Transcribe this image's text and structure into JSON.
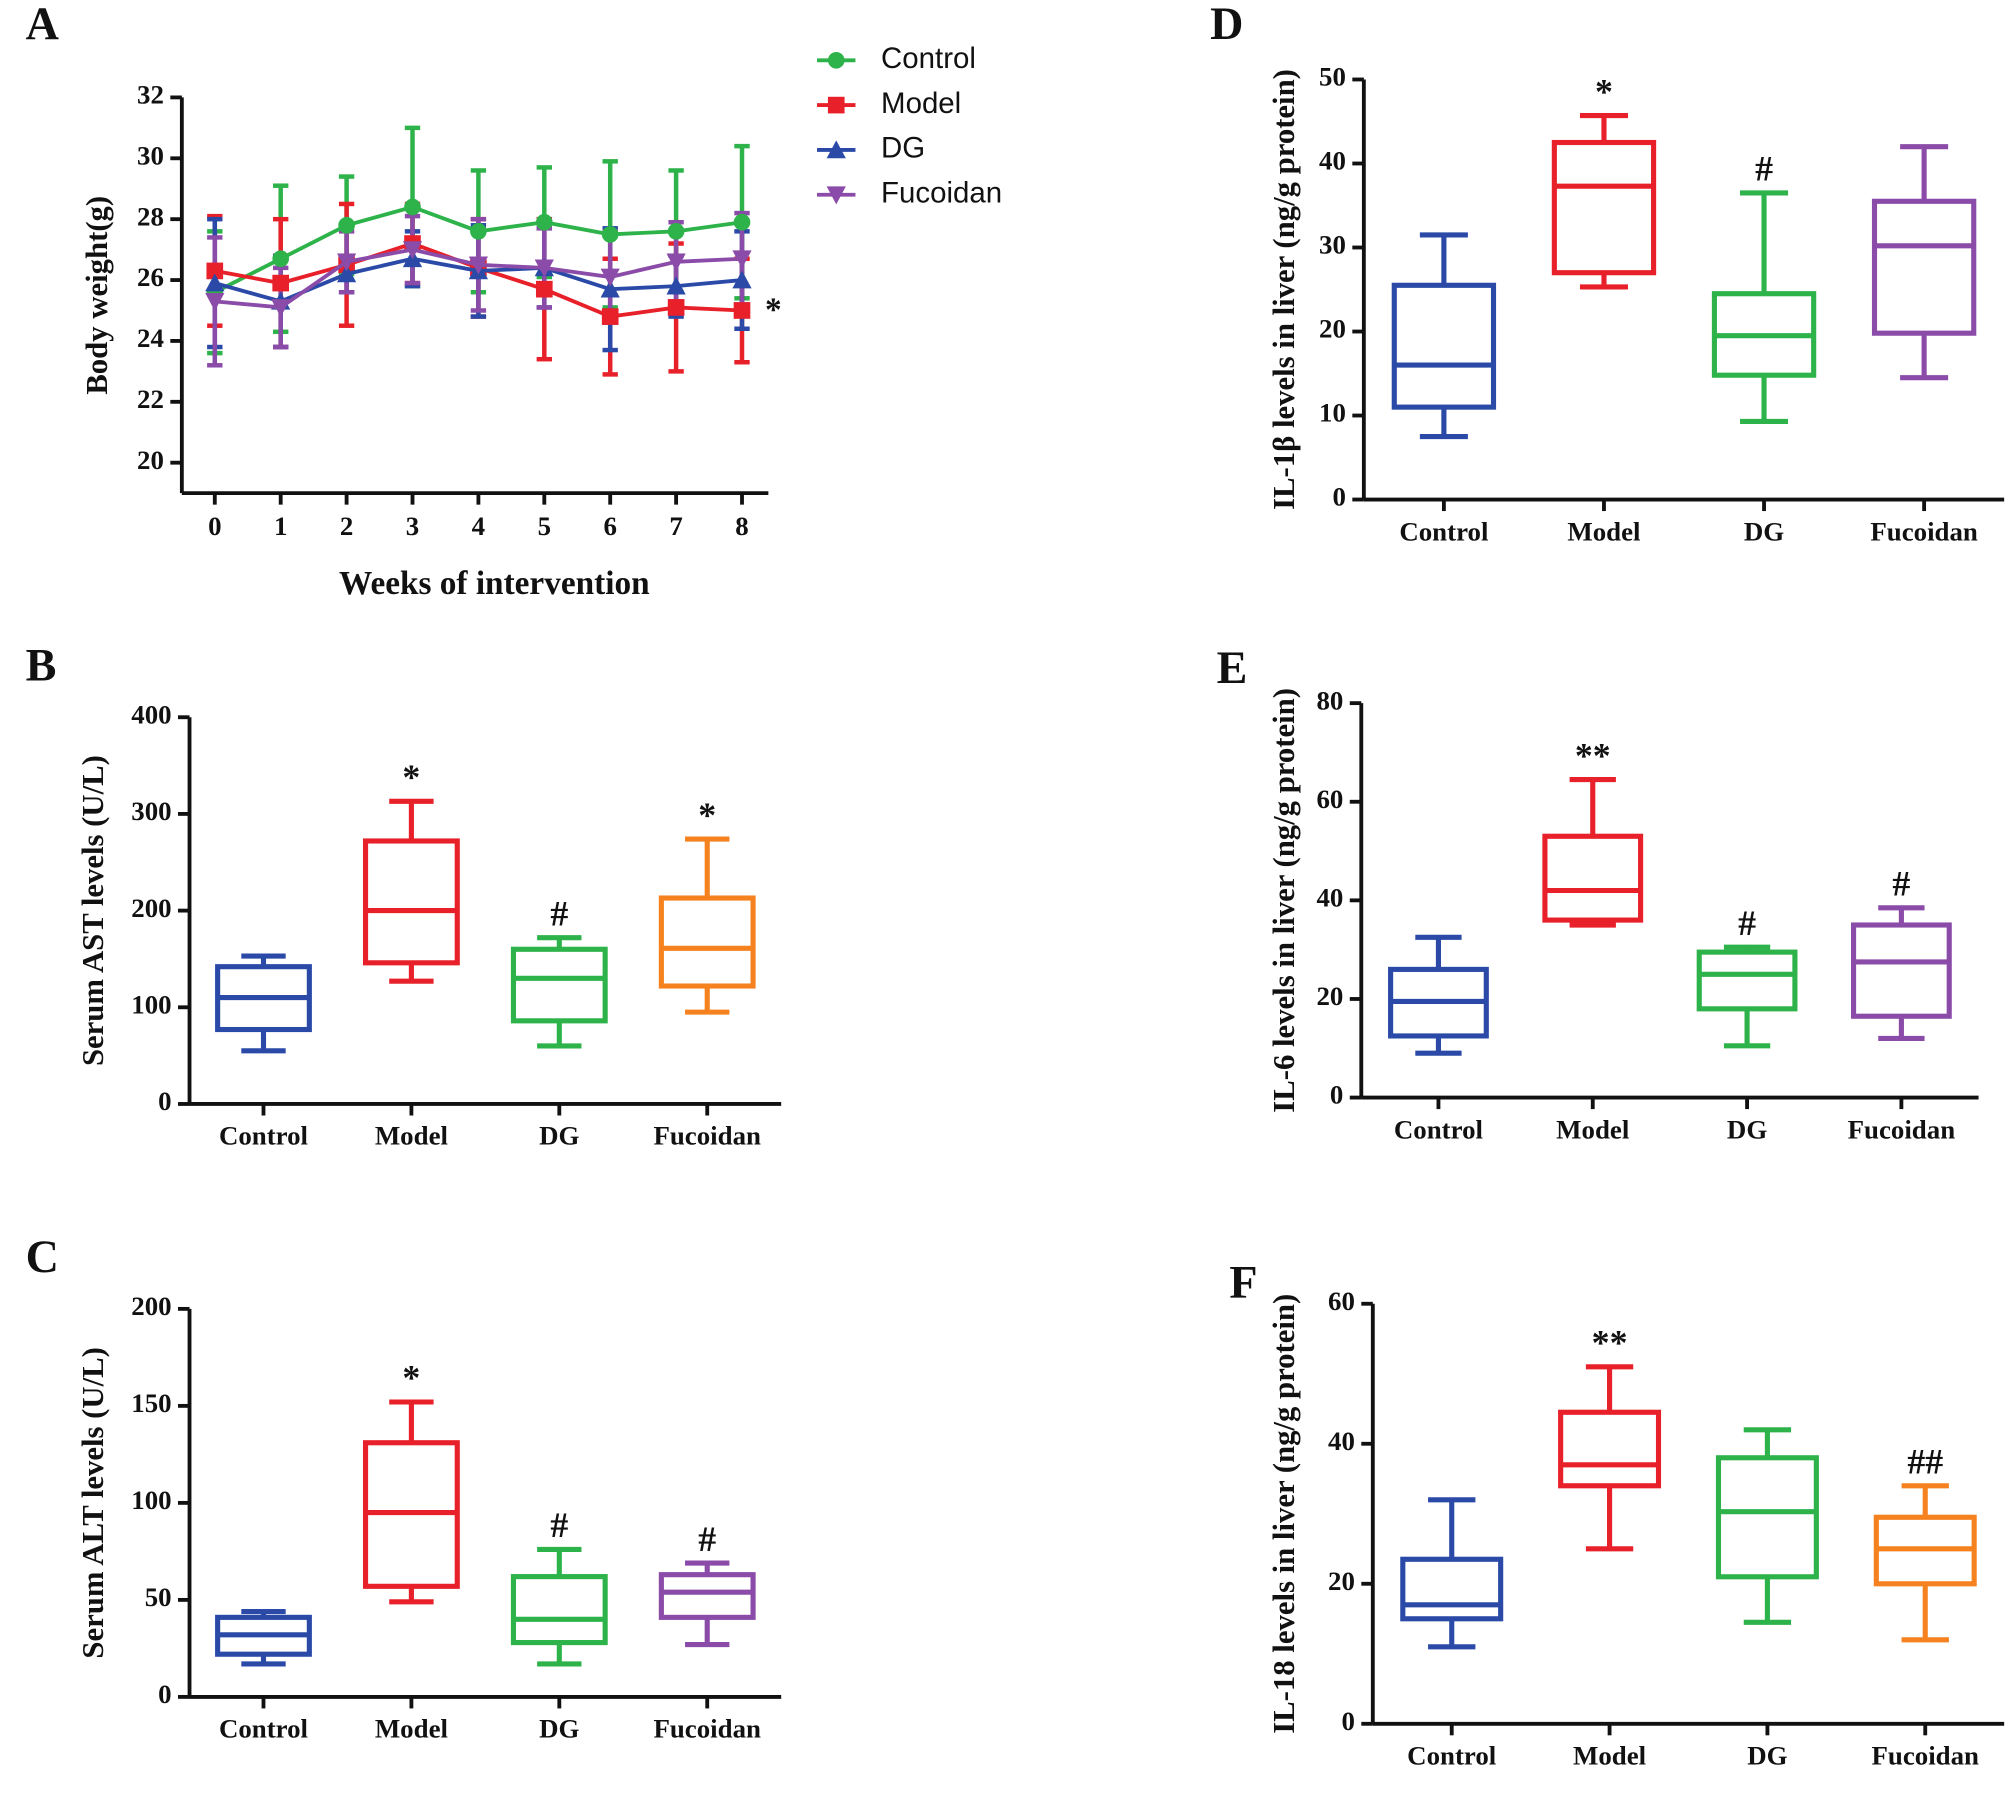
{
  "chart_data": [
    {
      "type": "line",
      "panel": "A",
      "y_label": "Body weight(g)",
      "x_label": "Weeks of intervention",
      "x": [
        0,
        1,
        2,
        3,
        4,
        5,
        6,
        7,
        8
      ],
      "xlim": [
        -0.5,
        8.4
      ],
      "xticks": [
        0,
        1,
        2,
        3,
        4,
        5,
        6,
        7,
        8
      ],
      "ylim": [
        19,
        32
      ],
      "yticks": [
        20,
        22,
        24,
        26,
        28,
        30,
        32
      ],
      "series": [
        {
          "name": "Control",
          "color": "#2db34a",
          "marker": "circle",
          "values": [
            25.6,
            26.7,
            27.8,
            28.4,
            27.6,
            27.9,
            27.5,
            27.6,
            27.9
          ],
          "errors": [
            2.0,
            2.4,
            1.6,
            2.6,
            2.0,
            1.8,
            2.4,
            2.0,
            2.5
          ]
        },
        {
          "name": "Model",
          "color": "#e8202a",
          "marker": "square",
          "values": [
            26.3,
            25.9,
            26.5,
            27.2,
            26.4,
            25.7,
            24.8,
            25.1,
            25.0
          ],
          "errors": [
            1.8,
            2.1,
            2.0,
            1.3,
            1.6,
            2.3,
            1.9,
            2.1,
            1.7
          ],
          "end_label": "*"
        },
        {
          "name": "DG",
          "color": "#2b4aa8",
          "marker": "triangle-up",
          "values": [
            25.9,
            25.3,
            26.2,
            26.7,
            26.3,
            26.4,
            25.7,
            25.8,
            26.0
          ],
          "errors": [
            2.1,
            1.5,
            0.6,
            0.9,
            1.5,
            1.3,
            2.0,
            1.0,
            1.6
          ]
        },
        {
          "name": "Fucoidan",
          "color": "#8b4ba8",
          "marker": "triangle-down",
          "values": [
            25.3,
            25.1,
            26.6,
            27.0,
            26.5,
            26.4,
            26.1,
            26.6,
            26.7
          ],
          "errors": [
            2.1,
            1.3,
            1.0,
            1.1,
            1.5,
            1.3,
            1.5,
            1.3,
            1.5
          ]
        }
      ]
    },
    {
      "type": "box",
      "panel": "B",
      "y_label": "Serum AST levels (U/L)",
      "categories": [
        "Control",
        "Model",
        "DG",
        "Fucoidan"
      ],
      "colors": [
        "#2b4aa8",
        "#e8202a",
        "#2db34a",
        "#f5821f"
      ],
      "min": [
        55,
        127,
        60,
        95
      ],
      "q1": [
        77,
        146,
        86,
        122
      ],
      "median": [
        110,
        200,
        130,
        161
      ],
      "q3": [
        142,
        272,
        160,
        213
      ],
      "max": [
        153,
        313,
        172,
        274
      ],
      "annotations": [
        null,
        "*",
        "#",
        "*"
      ],
      "ylim": [
        0,
        400
      ],
      "yticks": [
        0,
        100,
        200,
        300,
        400
      ]
    },
    {
      "type": "box",
      "panel": "C",
      "y_label": "Serum ALT levels (U/L)",
      "categories": [
        "Control",
        "Model",
        "DG",
        "Fucoidan"
      ],
      "colors": [
        "#2b4aa8",
        "#e8202a",
        "#2db34a",
        "#8b4ba8"
      ],
      "min": [
        17,
        49,
        17,
        27
      ],
      "q1": [
        22,
        57,
        28,
        41
      ],
      "median": [
        32,
        95,
        40,
        54
      ],
      "q3": [
        41,
        131,
        62,
        63
      ],
      "max": [
        44,
        152,
        76,
        69
      ],
      "annotations": [
        null,
        "*",
        "#",
        "#"
      ],
      "ylim": [
        0,
        200
      ],
      "yticks": [
        0,
        50,
        100,
        150,
        200
      ]
    },
    {
      "type": "box",
      "panel": "D",
      "y_label": "IL-1β levels in  liver  (ng/g protein)",
      "categories": [
        "Control",
        "Model",
        "DG",
        "Fucoidan"
      ],
      "colors": [
        "#2b4aa8",
        "#e8202a",
        "#2db34a",
        "#8b4ba8"
      ],
      "min": [
        7.5,
        25.3,
        9.3,
        14.5
      ],
      "q1": [
        11,
        27,
        14.8,
        19.8
      ],
      "median": [
        16,
        37.3,
        19.5,
        30.2
      ],
      "q3": [
        25.5,
        42.5,
        24.5,
        35.5
      ],
      "max": [
        31.5,
        45.7,
        36.5,
        42
      ],
      "annotations": [
        null,
        "*",
        "#",
        null
      ],
      "ylim": [
        0,
        50
      ],
      "yticks": [
        0,
        10,
        20,
        30,
        40,
        50
      ]
    },
    {
      "type": "box",
      "panel": "E",
      "y_label": "IL-6 levels in  liver  (ng/g protein)",
      "categories": [
        "Control",
        "Model",
        "DG",
        "Fucoidan"
      ],
      "colors": [
        "#2b4aa8",
        "#e8202a",
        "#2db34a",
        "#8b4ba8"
      ],
      "min": [
        9,
        35,
        10.5,
        12
      ],
      "q1": [
        12.5,
        36,
        18,
        16.5
      ],
      "median": [
        19.5,
        42,
        25,
        27.5
      ],
      "q3": [
        26,
        53,
        29.5,
        35
      ],
      "max": [
        32.5,
        64.5,
        30.5,
        38.5
      ],
      "annotations": [
        null,
        "**",
        "#",
        "#"
      ],
      "ylim": [
        0,
        80
      ],
      "yticks": [
        0,
        20,
        40,
        60,
        80
      ]
    },
    {
      "type": "box",
      "panel": "F",
      "y_label": "IL-18 levels in  liver  (ng/g protein)",
      "categories": [
        "Control",
        "Model",
        "DG",
        "Fucoidan"
      ],
      "colors": [
        "#2b4aa8",
        "#e8202a",
        "#2db34a",
        "#f5821f"
      ],
      "min": [
        11,
        25,
        14.5,
        12
      ],
      "q1": [
        15,
        34,
        21,
        20
      ],
      "median": [
        17,
        37,
        30.3,
        25
      ],
      "q3": [
        23.5,
        44.5,
        38,
        29.5
      ],
      "max": [
        32,
        51,
        42,
        34
      ],
      "annotations": [
        null,
        "**",
        null,
        "##"
      ],
      "ylim": [
        0,
        60
      ],
      "yticks": [
        0,
        20,
        40,
        60
      ]
    }
  ]
}
